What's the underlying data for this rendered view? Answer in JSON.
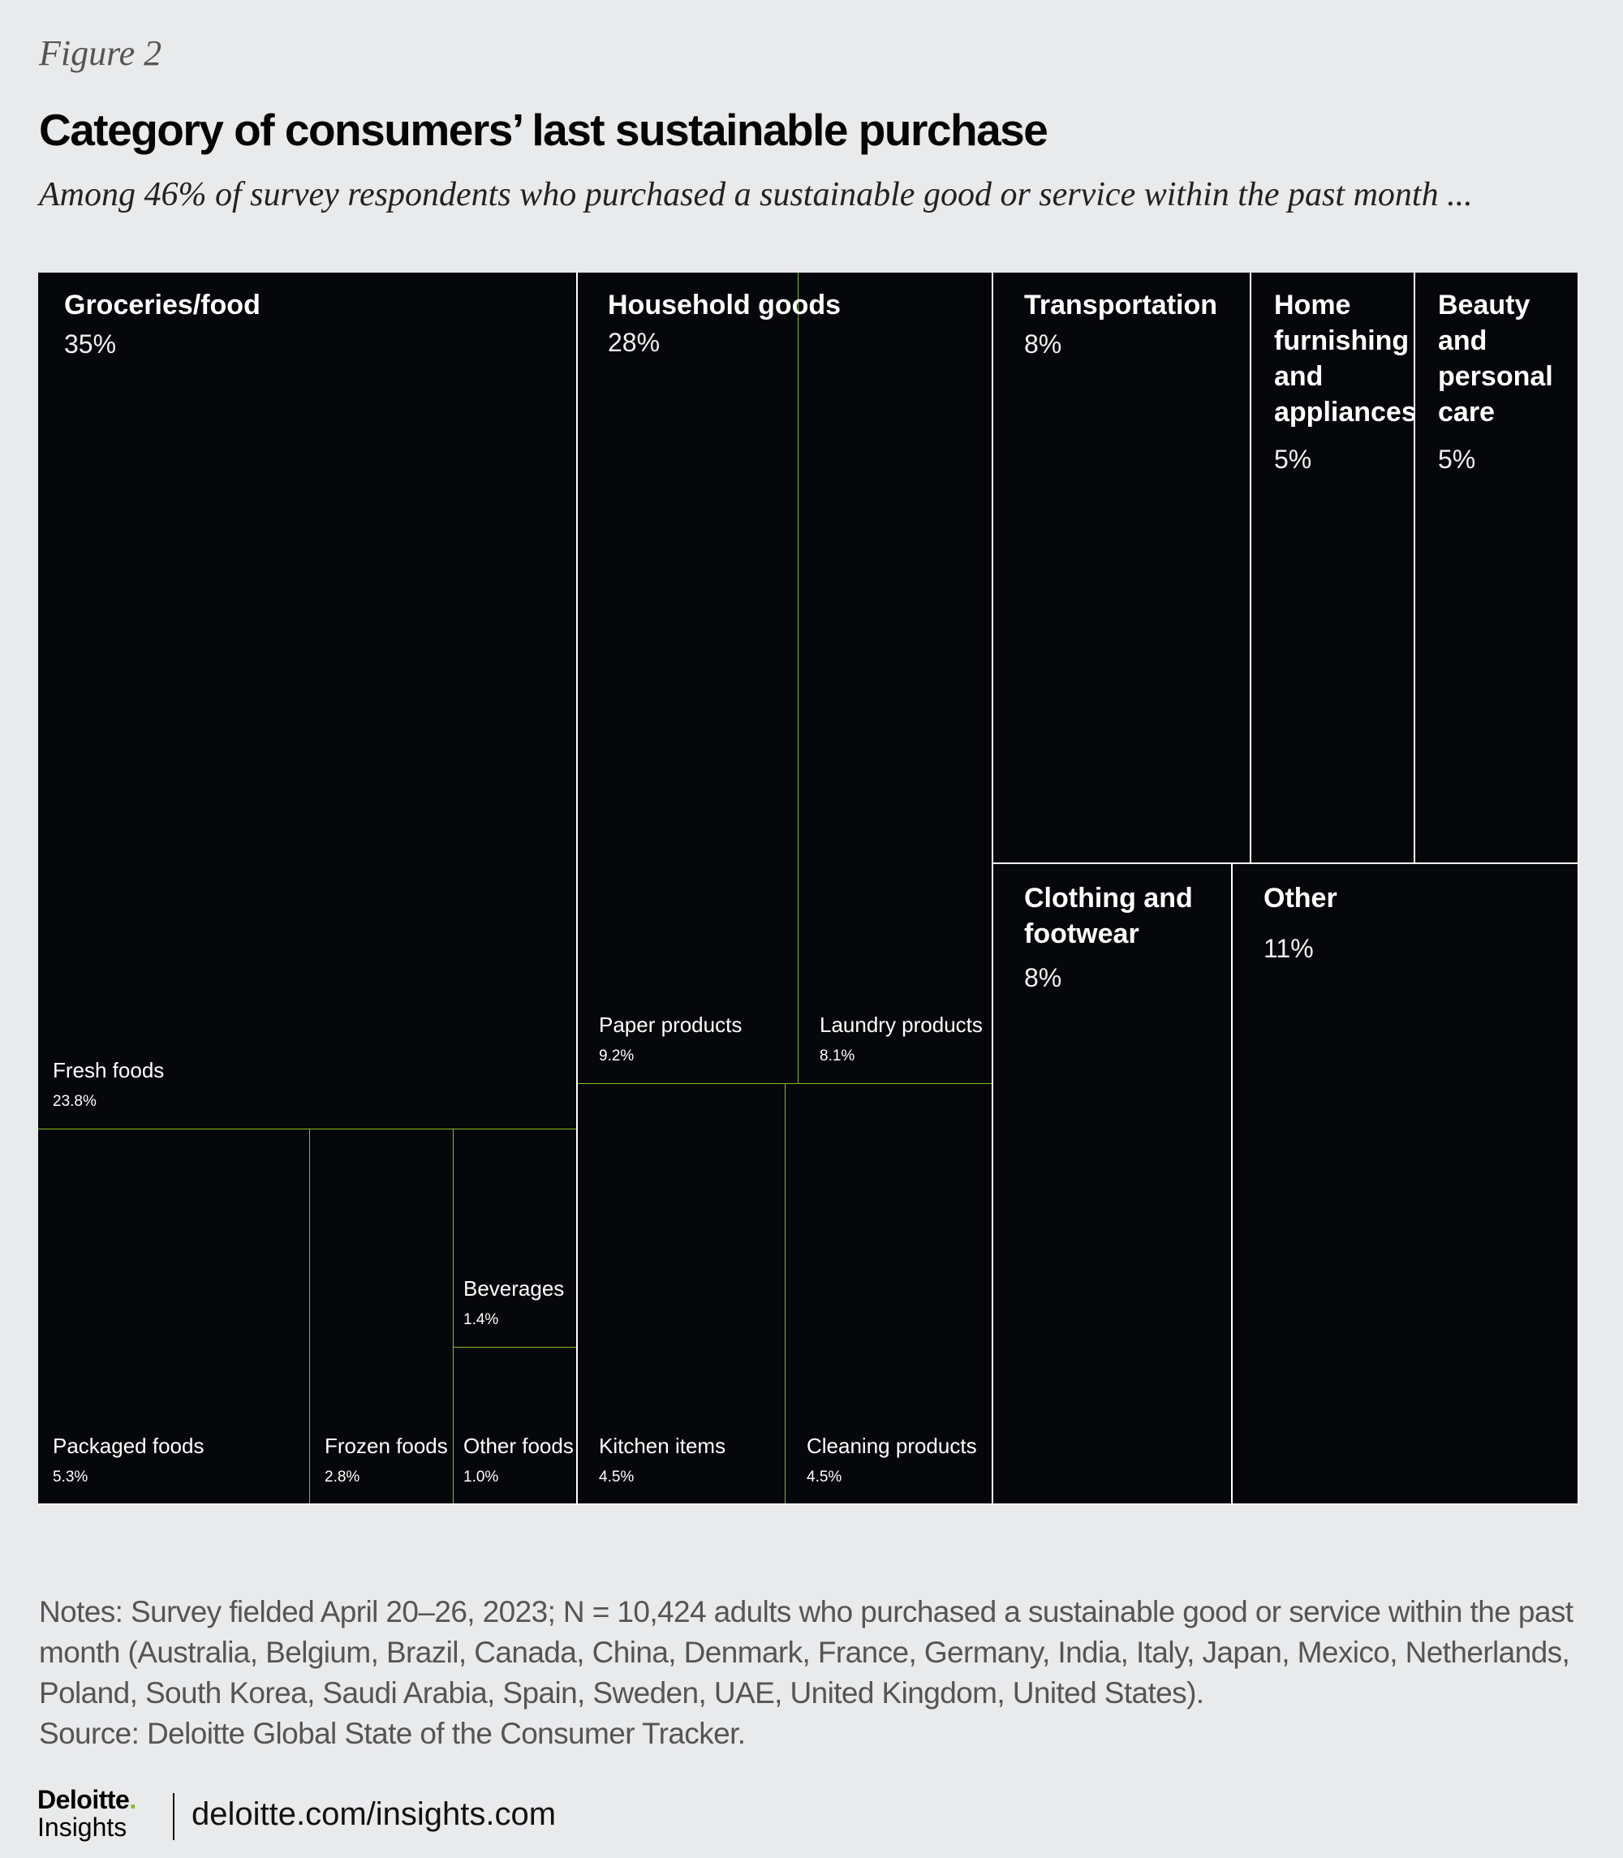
{
  "figure_label": "Figure 2",
  "colors": {
    "cell": "#06070a",
    "divider_main": "#ffffff",
    "divider_sub": "#86bc25",
    "background": "#e9eaec"
  },
  "chart_data": {
    "type": "treemap",
    "title": "Category of consumers’ last sustainable purchase",
    "subtitle": "Among 46% of survey respondents who purchased a sustainable good or service within the past month ...",
    "categories": [
      {
        "name": "Groceries/food",
        "value": 35,
        "label": "35%",
        "children": [
          {
            "name": "Fresh foods",
            "value": 23.8,
            "label": "23.8%"
          },
          {
            "name": "Packaged foods",
            "value": 5.3,
            "label": "5.3%"
          },
          {
            "name": "Frozen foods",
            "value": 2.8,
            "label": "2.8%"
          },
          {
            "name": "Beverages",
            "value": 1.4,
            "label": "1.4%"
          },
          {
            "name": "Other foods",
            "value": 1.0,
            "label": "1.0%"
          }
        ]
      },
      {
        "name": "Household goods",
        "value": 28,
        "label": "28%",
        "children": [
          {
            "name": "Paper products",
            "value": 9.2,
            "label": "9.2%"
          },
          {
            "name": "Laundry products",
            "value": 8.1,
            "label": "8.1%"
          },
          {
            "name": "Kitchen items",
            "value": 4.5,
            "label": "4.5%"
          },
          {
            "name": "Cleaning products",
            "value": 4.5,
            "label": "4.5%"
          }
        ]
      },
      {
        "name": "Transportation",
        "value": 8,
        "label": "8%",
        "children": []
      },
      {
        "name": "Home furnishing and appliances",
        "value": 5,
        "label": "5%",
        "children": []
      },
      {
        "name": "Beauty and personal care",
        "value": 5,
        "label": "5%",
        "children": []
      },
      {
        "name": "Clothing and footwear",
        "value": 8,
        "label": "8%",
        "children": []
      },
      {
        "name": "Other",
        "value": 11,
        "label": "11%",
        "children": []
      }
    ]
  },
  "notes": {
    "line1": "Notes: Survey fielded April 20–26, 2023; N = 10,424 adults who purchased a sustainable good or service within the past",
    "line2": "month (Australia, Belgium, Brazil, Canada, China, Denmark, France, Germany, India, Italy, Japan, Mexico, Netherlands,",
    "line3": "Poland, South Korea, Saudi Arabia, Spain, Sweden, UAE, United Kingdom, United States).",
    "source": "Source: Deloitte Global State of the Consumer Tracker."
  },
  "footer": {
    "brand": "Deloitte",
    "brand_dot": ".",
    "brand_sub": "Insights",
    "url": "deloitte.com/insights.com"
  }
}
